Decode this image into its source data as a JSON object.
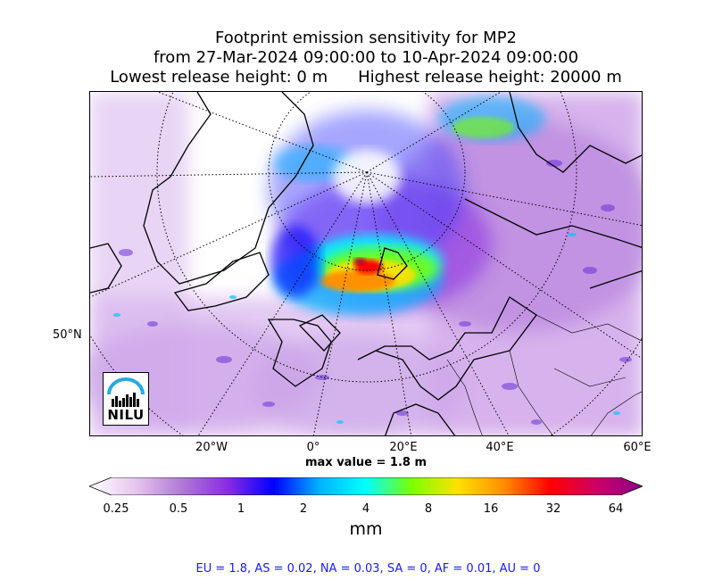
{
  "title": {
    "line1": "Footprint emission sensitivity for MP2",
    "line2": "from 27-Mar-2024 09:00:00 to 10-Apr-2024 09:00:00",
    "line3_left": "Lowest release height: 0 m",
    "line3_right": "Highest release height: 20000 m"
  },
  "map": {
    "longitude_labels": [
      "20°W",
      "0°",
      "20°E",
      "40°E",
      "60°E"
    ],
    "latitude_labels": [
      "50°N"
    ],
    "max_value_text": "max value = 1.8 m",
    "logo_text": "NILU",
    "logo_color": "#29a9e0"
  },
  "colorbar": {
    "ticks": [
      "0.25",
      "0.5",
      "1",
      "2",
      "4",
      "8",
      "16",
      "32",
      "64"
    ],
    "unit": "mm",
    "colors": [
      "#ffffff",
      "#e6c6ee",
      "#b07ad6",
      "#8a2be2",
      "#0000ff",
      "#00b4ff",
      "#00ffff",
      "#7cff00",
      "#ffe000",
      "#ff8c00",
      "#ff0000",
      "#cc0066",
      "#8b008b"
    ]
  },
  "footer": "EU = 1.8,  AS = 0.02,  NA = 0.03,  SA = 0,  AF = 0.01,  AU = 0"
}
